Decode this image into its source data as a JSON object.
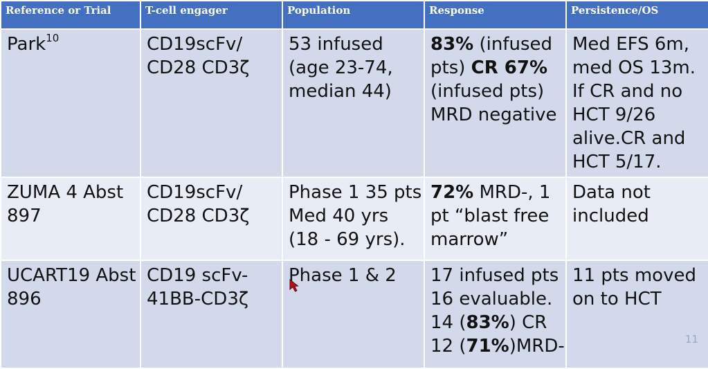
{
  "header": {
    "col1": "Reference or Trial",
    "col2": "T-cell engager",
    "col3": "Population",
    "col4": "Response",
    "col5": "Persistence/OS"
  },
  "rows": [
    {
      "ref": "Park",
      "ref_sup": "10",
      "engager": [
        "CD19scFv/",
        "CD28 CD3ζ"
      ],
      "population": [
        "53 infused",
        "(age 23-74,",
        "median 44)"
      ],
      "response": {
        "l1_b": "83%",
        "l1": " (infused",
        "l2": "pts) ",
        "l2_b": "CR 67%",
        "l3": "(infused pts)",
        "l4": "MRD negative"
      },
      "persistence": [
        "Med EFS 6m,",
        "med OS 13m.",
        "If CR and no",
        "HCT 9/26",
        "alive.CR and",
        "HCT 5/17."
      ]
    },
    {
      "ref": [
        "ZUMA 4 Abst",
        "897"
      ],
      "engager": [
        "CD19scFv/",
        "CD28 CD3ζ"
      ],
      "population": [
        "Phase 1 35 pts",
        "Med 40 yrs",
        "(18 - 69 yrs)."
      ],
      "response": {
        "l1_b": "72%",
        "l1": " MRD-, 1",
        "l2": "pt “blast free",
        "l3": "marrow”"
      },
      "persistence": [
        "Data not",
        "included"
      ]
    },
    {
      "ref": [
        "UCART19 Abst",
        "896"
      ],
      "engager": [
        "CD19 scFv-",
        "41BB-CD3ζ"
      ],
      "population": [
        "Phase 1 & 2"
      ],
      "response": {
        "l1": "17 infused pts",
        "l2": "16 evaluable.",
        "l3a": "14 (",
        "l3_b": "83%",
        "l3b": ") CR",
        "l4a": "12 (",
        "l4_b": "71%",
        "l4b": ")MRD-"
      },
      "persistence": [
        "11 pts moved",
        "on to HCT"
      ]
    }
  ],
  "page_number": "11",
  "colors": {
    "header_bg": "#4470c1",
    "row_dark": "#d1d9eb",
    "row_light": "#e8ecf5",
    "cursor": "#b3121b"
  },
  "icons": {
    "cursor": "mouse-pointer-icon"
  }
}
